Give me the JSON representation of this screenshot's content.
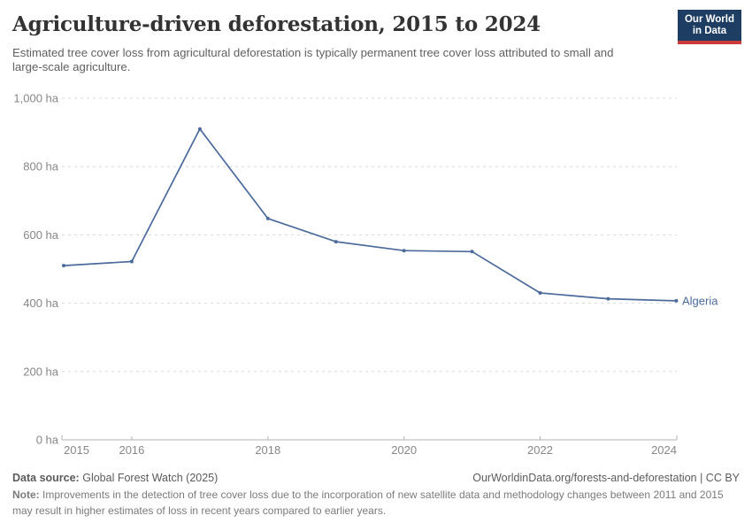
{
  "header": {
    "title": "Agriculture-driven deforestation, 2015 to 2024",
    "subtitle": "Estimated tree cover loss from agricultural deforestation is typically permanent tree cover loss attributed to small and large-scale agriculture.",
    "logo": {
      "line1": "Our World",
      "line2": "in Data"
    }
  },
  "chart_data": {
    "type": "line",
    "title": "Agriculture-driven deforestation, 2015 to 2024",
    "x": [
      2015,
      2016,
      2017,
      2018,
      2019,
      2020,
      2021,
      2022,
      2023,
      2024
    ],
    "series": [
      {
        "name": "Algeria",
        "color": "#4c6a9c",
        "values": [
          510,
          522,
          910,
          648,
          580,
          554,
          551,
          430,
          413,
          407
        ]
      }
    ],
    "unit": "ha",
    "ylim": [
      0,
      1000
    ],
    "yticks": [
      0,
      200,
      400,
      600,
      800,
      1000
    ],
    "ytick_labels": [
      "0 ha",
      "200 ha",
      "400 ha",
      "600 ha",
      "800 ha",
      "1,000 ha"
    ],
    "xtick_labels": [
      "2015",
      "2016",
      "2018",
      "2020",
      "2022",
      "2024"
    ],
    "grid": "horizontal-dashed",
    "legend": "end-of-line-label"
  },
  "footer": {
    "source_label": "Data source:",
    "source_value": "Global Forest Watch (2025)",
    "citation": "OurWorldinData.org/forests-and-deforestation | CC BY",
    "note_label": "Note:",
    "note_text": "Improvements in the detection of tree cover loss due to the incorporation of new satellite data and methodology changes between 2011 and 2015 may result in higher estimates of loss in recent years compared to earlier years."
  },
  "colors": {
    "line": "#4c6a9c",
    "grid": "#d9d9d9",
    "axis": "#b3b3b3",
    "tick_label": "#878787",
    "title": "#333333",
    "subtitle": "#616161",
    "footer": "#5b5b5b",
    "note": "#7b7b7b",
    "logo_bg": "#1d3d63",
    "logo_accent": "#cc3b3b"
  }
}
